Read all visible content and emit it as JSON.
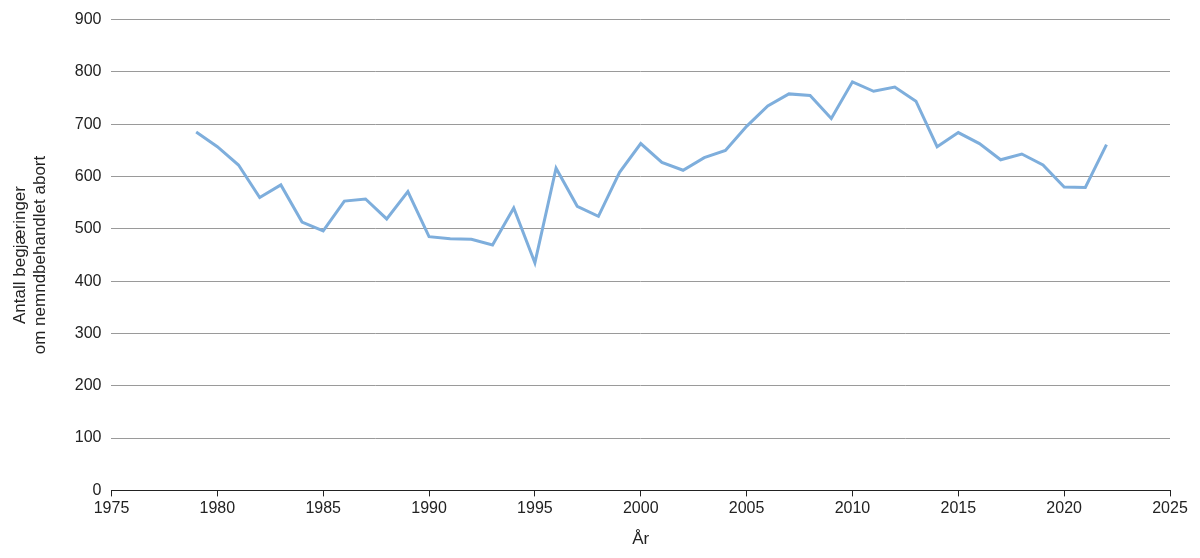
{
  "chart_data": {
    "type": "line",
    "x_label": "År",
    "y_label": [
      "Antall begjæringer",
      "om nemndbehandlet abort"
    ],
    "x": [
      1979,
      1980,
      1981,
      1982,
      1983,
      1984,
      1985,
      1986,
      1987,
      1988,
      1989,
      1990,
      1991,
      1992,
      1993,
      1994,
      1995,
      1996,
      1997,
      1998,
      1999,
      2000,
      2001,
      2002,
      2003,
      2004,
      2005,
      2006,
      2007,
      2008,
      2009,
      2010,
      2011,
      2012,
      2013,
      2014,
      2015,
      2016,
      2017,
      2018,
      2019,
      2020,
      2021,
      2022
    ],
    "values": [
      685,
      657,
      622,
      560,
      584,
      513,
      496,
      553,
      557,
      519,
      571,
      485,
      481,
      480,
      469,
      540,
      435,
      616,
      543,
      524,
      608,
      663,
      627,
      612,
      636,
      650,
      696,
      735,
      758,
      755,
      711,
      781,
      763,
      771,
      744,
      657,
      684,
      663,
      632,
      643,
      622,
      580,
      579,
      661
    ],
    "color": "#7eaedc",
    "xlim": [
      1975,
      2025
    ],
    "xticks": [
      1975,
      1980,
      1985,
      1990,
      1995,
      2000,
      2005,
      2010,
      2015,
      2020,
      2025
    ],
    "ylim": [
      0,
      900
    ],
    "yticks": [
      0,
      100,
      200,
      300,
      400,
      500,
      600,
      700,
      800,
      900
    ],
    "grid": "y"
  }
}
